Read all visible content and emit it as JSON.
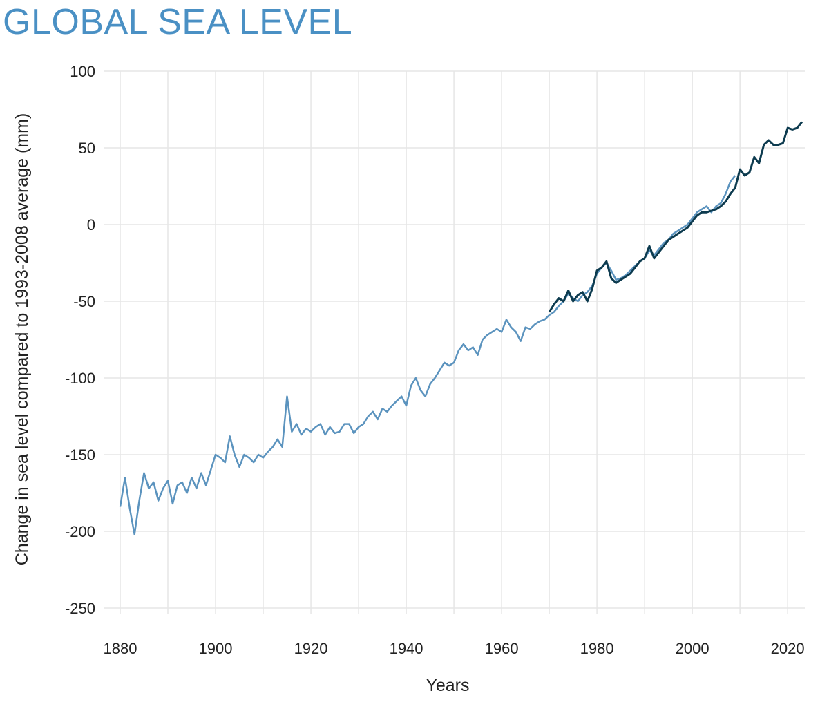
{
  "title": "GLOBAL SEA LEVEL",
  "chart_data": {
    "type": "line",
    "title": "GLOBAL SEA LEVEL",
    "xlabel": "Years",
    "ylabel": "Change in sea level compared to 1993-2008 average (mm)",
    "xlim": [
      1880,
      2023.6
    ],
    "ylim": [
      -250,
      100
    ],
    "xticks": [
      1880,
      1900,
      1920,
      1940,
      1960,
      1980,
      2000,
      2020
    ],
    "yticks": [
      100,
      50,
      0,
      -50,
      -100,
      -150,
      -200,
      -250
    ],
    "grid": true,
    "colors": {
      "title": "#4a90c4",
      "series_light": "#5b93be",
      "series_dark": "#0d3b4f",
      "grid": "#e6e6e6"
    },
    "series": [
      {
        "x_start": 1880,
        "values": [
          -184,
          -165,
          -185,
          -202,
          -180,
          -162,
          -172,
          -168,
          -180,
          -172,
          -167,
          -182,
          -170,
          -168,
          -175,
          -165,
          -172,
          -162,
          -170,
          -160,
          -150,
          -152,
          -155,
          -138,
          -150,
          -158,
          -150,
          -152,
          -155,
          -150,
          -152,
          -148,
          -145,
          -140,
          -145,
          -112,
          -135,
          -130,
          -137,
          -133,
          -135,
          -132,
          -130,
          -137,
          -132,
          -136,
          -135,
          -130,
          -130,
          -136,
          -132,
          -130,
          -125,
          -122,
          -127,
          -120,
          -122,
          -118,
          -115,
          -112,
          -118,
          -105,
          -100,
          -108,
          -112,
          -104,
          -100,
          -95,
          -90,
          -92,
          -90,
          -82,
          -78,
          -82,
          -80,
          -85,
          -75,
          -72,
          -70,
          -68,
          -70,
          -62,
          -67,
          -70,
          -76,
          -67,
          -68,
          -65,
          -63,
          -62,
          -59,
          -57,
          -53,
          -50,
          -45,
          -48,
          -50,
          -46,
          -44,
          -40,
          -32,
          -28,
          -25,
          -30,
          -36,
          -35,
          -33,
          -30,
          -27,
          -24,
          -22,
          -17,
          -20,
          -16,
          -12,
          -10,
          -6,
          -4,
          -2,
          0,
          4,
          8,
          10,
          12,
          8,
          12,
          14,
          20,
          28,
          32
        ]
      },
      {
        "x_start": 1970,
        "values": [
          -57,
          -52,
          -48,
          -50,
          -43,
          -50,
          -46,
          -44,
          -50,
          -42,
          -30,
          -28,
          -24,
          -35,
          -38,
          -36,
          -34,
          -32,
          -28,
          -24,
          -22,
          -14,
          -22,
          -18,
          -14,
          -10,
          -8,
          -6,
          -4,
          -2,
          2,
          6,
          8,
          8,
          9,
          10,
          12,
          15,
          20,
          24,
          36,
          32,
          34,
          44,
          40,
          52,
          55,
          52,
          52,
          53,
          63,
          62,
          63,
          67
        ]
      }
    ]
  }
}
